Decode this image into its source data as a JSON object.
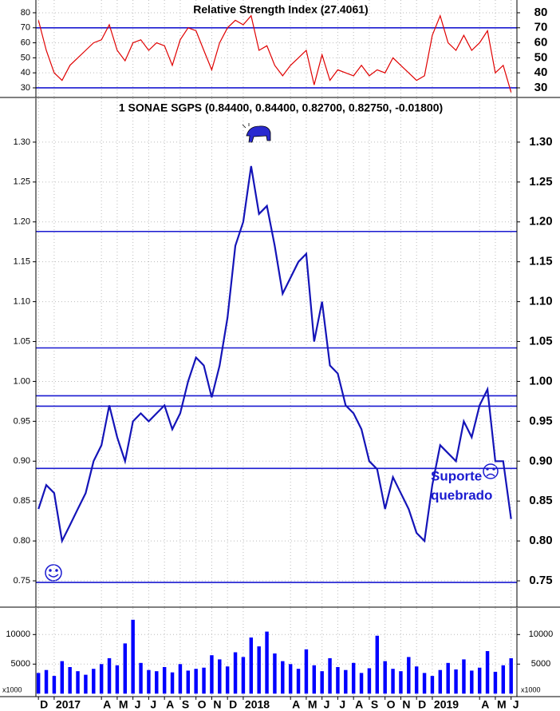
{
  "chart_data": [
    {
      "type": "line",
      "title": "Relative Strength Index (27.4061)",
      "color": "#e00000",
      "x": [
        -1,
        -0.5,
        0,
        0.5,
        1,
        1.5,
        2,
        2.5,
        3,
        3.5,
        4,
        4.5,
        5,
        5.5,
        6,
        6.5,
        7,
        7.5,
        8,
        8.5,
        9,
        9.5,
        10,
        10.5,
        11,
        11.5,
        12,
        12.5,
        13,
        13.5,
        14,
        14.5,
        15,
        15.5,
        16,
        16.5,
        17,
        17.5,
        18,
        18.5,
        19,
        19.5,
        20,
        20.5,
        21,
        21.5,
        22,
        22.5,
        23,
        23.5,
        24,
        24.5,
        25,
        25.5,
        26,
        26.5,
        27,
        27.5,
        28,
        28.5,
        29
      ],
      "values": [
        75,
        55,
        40,
        35,
        45,
        50,
        55,
        60,
        62,
        72,
        55,
        48,
        60,
        62,
        55,
        60,
        58,
        45,
        62,
        70,
        68,
        55,
        42,
        60,
        70,
        75,
        72,
        78,
        55,
        58,
        45,
        38,
        45,
        50,
        55,
        32,
        52,
        35,
        42,
        40,
        38,
        45,
        38,
        42,
        40,
        50,
        45,
        40,
        35,
        38,
        65,
        78,
        60,
        55,
        65,
        55,
        60,
        68,
        40,
        45,
        27
      ],
      "xlim": [
        -1.16,
        29.37
      ],
      "ylim": [
        23.6,
        88.5
      ],
      "yticks": [
        30,
        40,
        50,
        60,
        70,
        80
      ],
      "reference_lines": [
        70,
        30
      ],
      "grid": true
    },
    {
      "type": "line",
      "title": "1 SONAE SGPS (0.84400, 0.84400, 0.82700, 0.82750, -0.01800)",
      "color": "#1414b8",
      "x": [
        -1,
        -0.5,
        0,
        0.5,
        1,
        1.5,
        2,
        2.5,
        3,
        3.5,
        4,
        4.5,
        5,
        5.5,
        6,
        6.5,
        7,
        7.5,
        8,
        8.5,
        9,
        9.5,
        10,
        10.5,
        11,
        11.5,
        12,
        12.5,
        13,
        13.5,
        14,
        14.5,
        15,
        15.5,
        16,
        16.5,
        17,
        17.5,
        18,
        18.5,
        19,
        19.5,
        20,
        20.5,
        21,
        21.5,
        22,
        22.5,
        23,
        23.5,
        24,
        24.5,
        25,
        25.5,
        26,
        26.5,
        27,
        27.5,
        28,
        28.5,
        29
      ],
      "values": [
        0.84,
        0.87,
        0.86,
        0.8,
        0.82,
        0.84,
        0.86,
        0.9,
        0.92,
        0.97,
        0.93,
        0.9,
        0.95,
        0.96,
        0.95,
        0.96,
        0.97,
        0.94,
        0.96,
        1.0,
        1.03,
        1.02,
        0.98,
        1.02,
        1.08,
        1.17,
        1.2,
        1.27,
        1.21,
        1.22,
        1.17,
        1.11,
        1.13,
        1.15,
        1.16,
        1.05,
        1.1,
        1.02,
        1.01,
        0.97,
        0.96,
        0.94,
        0.9,
        0.89,
        0.84,
        0.88,
        0.86,
        0.84,
        0.81,
        0.8,
        0.87,
        0.92,
        0.91,
        0.9,
        0.95,
        0.93,
        0.97,
        0.99,
        0.9,
        0.9,
        0.8275
      ],
      "xlim": [
        -1.16,
        29.37
      ],
      "ylim": [
        0.717,
        1.355
      ],
      "yticks": [
        0.75,
        {
          "value": 0.8,
          "label": "0.80"
        },
        0.85,
        {
          "value": 0.9,
          "label": "0.90"
        },
        0.95,
        {
          "value": 1.0,
          "label": "1.00"
        },
        1.05,
        {
          "value": 1.1,
          "label": "1.10"
        },
        1.15,
        {
          "value": 1.2,
          "label": "1.20"
        },
        1.25,
        {
          "value": 1.3,
          "label": "1.30"
        }
      ],
      "reference_lines": [
        1.188,
        1.042,
        0.982,
        0.969,
        0.891,
        0.748
      ],
      "annotation": [
        "Suporte",
        "quebrado"
      ],
      "grid": true
    },
    {
      "type": "bar",
      "color": "#0000ff",
      "y_unit_label": "x1000",
      "x": [
        -1,
        -0.5,
        0,
        0.5,
        1,
        1.5,
        2,
        2.5,
        3,
        3.5,
        4,
        4.5,
        5,
        5.5,
        6,
        6.5,
        7,
        7.5,
        8,
        8.5,
        9,
        9.5,
        10,
        10.5,
        11,
        11.5,
        12,
        12.5,
        13,
        13.5,
        14,
        14.5,
        15,
        15.5,
        16,
        16.5,
        17,
        17.5,
        18,
        18.5,
        19,
        19.5,
        20,
        20.5,
        21,
        21.5,
        22,
        22.5,
        23,
        23.5,
        24,
        24.5,
        25,
        25.5,
        26,
        26.5,
        27,
        27.5,
        28,
        28.5,
        29
      ],
      "values": [
        3500,
        4000,
        3000,
        5500,
        4500,
        3800,
        3200,
        4200,
        5000,
        6000,
        4800,
        8500,
        12500,
        5200,
        4000,
        3800,
        4500,
        3600,
        5000,
        3900,
        4200,
        4400,
        6500,
        5800,
        4600,
        7000,
        6200,
        9500,
        8000,
        10500,
        6800,
        5500,
        5000,
        4200,
        7500,
        4800,
        3800,
        6000,
        4500,
        4000,
        5200,
        3500,
        4300,
        9800,
        5500,
        4200,
        3800,
        6200,
        4600,
        3500,
        3000,
        4000,
        5200,
        4100,
        5800,
        3900,
        4400,
        7200,
        3700,
        4800,
        6000
      ],
      "xlim": [
        -1.16,
        29.37
      ],
      "ylim": [
        -500,
        14500
      ],
      "yticks": [
        5000,
        10000
      ],
      "xticks": [
        {
          "value": -1,
          "label": "D"
        },
        {
          "value": 0,
          "label": "2017"
        },
        {
          "value": 3,
          "label": "A"
        },
        {
          "value": 4,
          "label": "M"
        },
        {
          "value": 5,
          "label": "J"
        },
        {
          "value": 6,
          "label": "J"
        },
        {
          "value": 7,
          "label": "A"
        },
        {
          "value": 8,
          "label": "S"
        },
        {
          "value": 9,
          "label": "O"
        },
        {
          "value": 10,
          "label": "N"
        },
        {
          "value": 11,
          "label": "D"
        },
        {
          "value": 12,
          "label": "2018"
        },
        {
          "value": 15,
          "label": "A"
        },
        {
          "value": 16,
          "label": "M"
        },
        {
          "value": 17,
          "label": "J"
        },
        {
          "value": 18,
          "label": "J"
        },
        {
          "value": 19,
          "label": "A"
        },
        {
          "value": 20,
          "label": "S"
        },
        {
          "value": 21,
          "label": "O"
        },
        {
          "value": 22,
          "label": "N"
        },
        {
          "value": 23,
          "label": "D"
        },
        {
          "value": 24,
          "label": "2019"
        },
        {
          "value": 27,
          "label": "A"
        },
        {
          "value": 28,
          "label": "M"
        },
        {
          "value": 29,
          "label": "J"
        }
      ],
      "grid": true
    }
  ]
}
